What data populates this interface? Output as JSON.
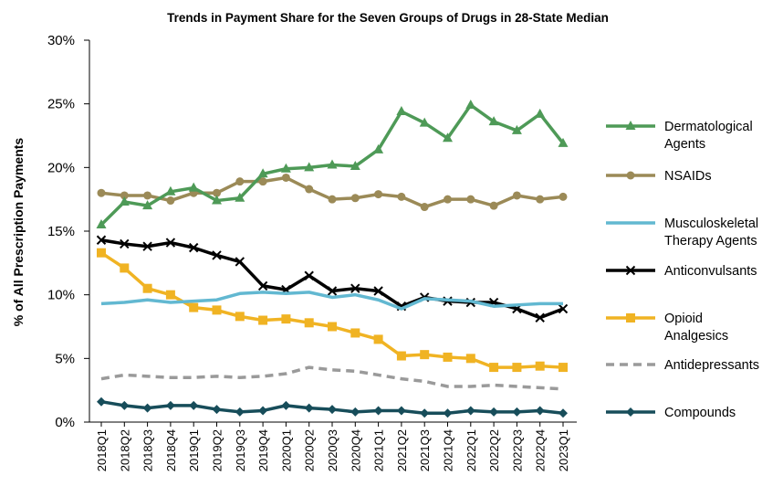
{
  "chart_data": {
    "type": "line",
    "title": "Trends in Payment Share for the Seven Groups of Drugs in 28-State Median",
    "xlabel": "",
    "ylabel": "% of All Prescription Payments",
    "ylim": [
      0,
      30
    ],
    "yticks": [
      "0%",
      "5%",
      "10%",
      "15%",
      "20%",
      "25%",
      "30%"
    ],
    "categories": [
      "2018Q1",
      "2018Q2",
      "2018Q3",
      "2018Q4",
      "2019Q1",
      "2019Q2",
      "2019Q3",
      "2019Q4",
      "2020Q1",
      "2020Q2",
      "2020Q3",
      "2020Q4",
      "2021Q1",
      "2021Q2",
      "2021Q3",
      "2021Q4",
      "2022Q1",
      "2022Q2",
      "2022Q3",
      "2022Q4",
      "2023Q1"
    ],
    "series": [
      {
        "name": "Dermatological Agents",
        "legend_lines": [
          "Dermatological",
          "Agents"
        ],
        "color": "#4e9a57",
        "marker": "triangle",
        "dashed": false,
        "values": [
          15.5,
          17.3,
          17.0,
          18.1,
          18.4,
          17.4,
          17.6,
          19.5,
          19.9,
          20.0,
          20.2,
          20.1,
          21.4,
          24.4,
          23.5,
          22.3,
          24.9,
          23.6,
          22.9,
          24.2,
          21.9
        ]
      },
      {
        "name": "NSAIDs",
        "legend_lines": [
          "NSAIDs"
        ],
        "color": "#9b8a57",
        "marker": "circle",
        "dashed": false,
        "values": [
          18.0,
          17.8,
          17.8,
          17.4,
          18.0,
          18.0,
          18.9,
          18.9,
          19.2,
          18.3,
          17.5,
          17.6,
          17.9,
          17.7,
          16.9,
          17.5,
          17.5,
          17.0,
          17.8,
          17.5,
          17.7
        ]
      },
      {
        "name": "Musculoskeletal Therapy Agents",
        "legend_lines": [
          "Musculoskeletal",
          "Therapy Agents"
        ],
        "color": "#62b8d1",
        "marker": "none",
        "dashed": false,
        "values": [
          9.3,
          9.4,
          9.6,
          9.4,
          9.5,
          9.6,
          10.1,
          10.2,
          10.1,
          10.2,
          9.8,
          10.0,
          9.6,
          8.9,
          9.7,
          9.6,
          9.5,
          9.1,
          9.2,
          9.3,
          9.3
        ]
      },
      {
        "name": "Anticonvulsants",
        "legend_lines": [
          "Anticonvulsants"
        ],
        "color": "#000000",
        "marker": "x",
        "dashed": false,
        "values": [
          14.3,
          14.0,
          13.8,
          14.1,
          13.7,
          13.1,
          12.6,
          10.7,
          10.4,
          11.5,
          10.3,
          10.5,
          10.3,
          9.1,
          9.8,
          9.5,
          9.4,
          9.4,
          8.9,
          8.2,
          8.9
        ]
      },
      {
        "name": "Opioid Analgesics",
        "legend_lines": [
          "Opioid",
          "Analgesics"
        ],
        "color": "#f0b323",
        "marker": "square",
        "dashed": false,
        "values": [
          13.3,
          12.1,
          10.5,
          10.0,
          9.0,
          8.8,
          8.3,
          8.0,
          8.1,
          7.8,
          7.5,
          7.0,
          6.5,
          5.2,
          5.3,
          5.1,
          5.0,
          4.3,
          4.3,
          4.4,
          4.3
        ]
      },
      {
        "name": "Antidepressants",
        "legend_lines": [
          "Antidepressants"
        ],
        "color": "#9a9a9a",
        "marker": "none",
        "dashed": true,
        "values": [
          3.4,
          3.7,
          3.6,
          3.5,
          3.5,
          3.6,
          3.5,
          3.6,
          3.8,
          4.3,
          4.1,
          4.0,
          3.7,
          3.4,
          3.2,
          2.8,
          2.8,
          2.9,
          2.8,
          2.7,
          2.6
        ]
      },
      {
        "name": "Compounds",
        "legend_lines": [
          "Compounds"
        ],
        "color": "#174d5a",
        "marker": "diamond",
        "dashed": false,
        "values": [
          1.6,
          1.3,
          1.1,
          1.3,
          1.3,
          1.0,
          0.8,
          0.9,
          1.3,
          1.1,
          1.0,
          0.8,
          0.9,
          0.9,
          0.7,
          0.7,
          0.9,
          0.8,
          0.8,
          0.9,
          0.7
        ]
      }
    ],
    "legend_position": "right",
    "grid": false
  }
}
